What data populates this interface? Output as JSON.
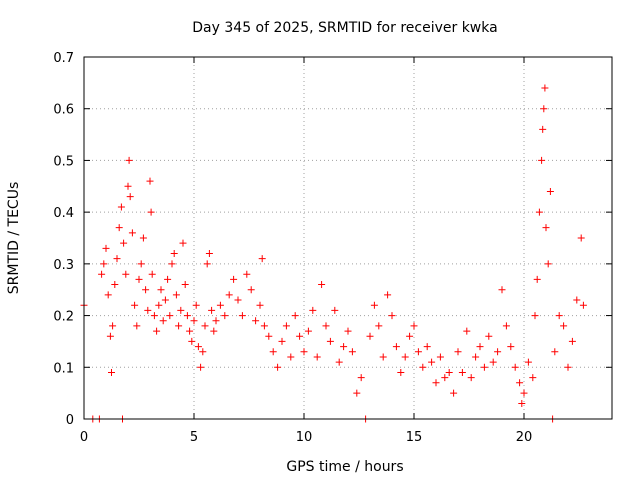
{
  "chart_data": {
    "type": "scatter",
    "title": "Day 345 of 2025, SRMTID for receiver kwka",
    "xlabel": "GPS time / hours",
    "ylabel": "SRMTID / TECUs",
    "xlim": [
      0,
      24
    ],
    "ylim": [
      0,
      0.7
    ],
    "xticks": [
      0,
      5,
      10,
      15,
      20
    ],
    "xtick_labels": [
      "0",
      "5",
      "10",
      "15",
      "20"
    ],
    "yticks": [
      0,
      0.1,
      0.2,
      0.3,
      0.4,
      0.5,
      0.6,
      0.7
    ],
    "ytick_labels": [
      "0",
      "0.1",
      "0.2",
      "0.3",
      "0.4",
      "0.5",
      "0.6",
      "0.7"
    ],
    "grid": true,
    "marker": "+",
    "color": "#ff0000",
    "series": [
      {
        "name": "SRMTID",
        "points": [
          [
            0.0,
            0.22
          ],
          [
            0.4,
            0.0
          ],
          [
            0.7,
            0.0
          ],
          [
            0.8,
            0.28
          ],
          [
            0.9,
            0.3
          ],
          [
            1.0,
            0.33
          ],
          [
            1.1,
            0.24
          ],
          [
            1.2,
            0.16
          ],
          [
            1.25,
            0.09
          ],
          [
            1.3,
            0.18
          ],
          [
            1.4,
            0.26
          ],
          [
            1.5,
            0.31
          ],
          [
            1.6,
            0.37
          ],
          [
            1.7,
            0.41
          ],
          [
            1.75,
            0.0
          ],
          [
            1.8,
            0.34
          ],
          [
            1.9,
            0.28
          ],
          [
            2.0,
            0.45
          ],
          [
            2.05,
            0.5
          ],
          [
            2.1,
            0.43
          ],
          [
            2.2,
            0.36
          ],
          [
            2.3,
            0.22
          ],
          [
            2.4,
            0.18
          ],
          [
            2.5,
            0.27
          ],
          [
            2.6,
            0.3
          ],
          [
            2.7,
            0.35
          ],
          [
            2.8,
            0.25
          ],
          [
            2.9,
            0.21
          ],
          [
            3.0,
            0.46
          ],
          [
            3.05,
            0.4
          ],
          [
            3.1,
            0.28
          ],
          [
            3.2,
            0.2
          ],
          [
            3.3,
            0.17
          ],
          [
            3.4,
            0.22
          ],
          [
            3.5,
            0.25
          ],
          [
            3.6,
            0.19
          ],
          [
            3.7,
            0.23
          ],
          [
            3.8,
            0.27
          ],
          [
            3.9,
            0.2
          ],
          [
            4.0,
            0.3
          ],
          [
            4.1,
            0.32
          ],
          [
            4.2,
            0.24
          ],
          [
            4.3,
            0.18
          ],
          [
            4.4,
            0.21
          ],
          [
            4.5,
            0.34
          ],
          [
            4.6,
            0.26
          ],
          [
            4.7,
            0.2
          ],
          [
            4.8,
            0.17
          ],
          [
            4.9,
            0.15
          ],
          [
            5.0,
            0.19
          ],
          [
            5.1,
            0.22
          ],
          [
            5.2,
            0.14
          ],
          [
            5.3,
            0.1
          ],
          [
            5.4,
            0.13
          ],
          [
            5.5,
            0.18
          ],
          [
            5.6,
            0.3
          ],
          [
            5.7,
            0.32
          ],
          [
            5.8,
            0.21
          ],
          [
            5.9,
            0.17
          ],
          [
            6.0,
            0.19
          ],
          [
            6.2,
            0.22
          ],
          [
            6.4,
            0.2
          ],
          [
            6.6,
            0.24
          ],
          [
            6.8,
            0.27
          ],
          [
            7.0,
            0.23
          ],
          [
            7.2,
            0.2
          ],
          [
            7.4,
            0.28
          ],
          [
            7.6,
            0.25
          ],
          [
            7.8,
            0.19
          ],
          [
            8.0,
            0.22
          ],
          [
            8.1,
            0.31
          ],
          [
            8.2,
            0.18
          ],
          [
            8.4,
            0.16
          ],
          [
            8.6,
            0.13
          ],
          [
            8.8,
            0.1
          ],
          [
            9.0,
            0.15
          ],
          [
            9.2,
            0.18
          ],
          [
            9.4,
            0.12
          ],
          [
            9.6,
            0.2
          ],
          [
            9.8,
            0.16
          ],
          [
            10.0,
            0.13
          ],
          [
            10.2,
            0.17
          ],
          [
            10.4,
            0.21
          ],
          [
            10.6,
            0.12
          ],
          [
            10.8,
            0.26
          ],
          [
            11.0,
            0.18
          ],
          [
            11.2,
            0.15
          ],
          [
            11.4,
            0.21
          ],
          [
            11.6,
            0.11
          ],
          [
            11.8,
            0.14
          ],
          [
            12.0,
            0.17
          ],
          [
            12.2,
            0.13
          ],
          [
            12.4,
            0.05
          ],
          [
            12.6,
            0.08
          ],
          [
            12.8,
            0.0
          ],
          [
            13.0,
            0.16
          ],
          [
            13.2,
            0.22
          ],
          [
            13.4,
            0.18
          ],
          [
            13.6,
            0.12
          ],
          [
            13.8,
            0.24
          ],
          [
            14.0,
            0.2
          ],
          [
            14.2,
            0.14
          ],
          [
            14.4,
            0.09
          ],
          [
            14.6,
            0.12
          ],
          [
            14.8,
            0.16
          ],
          [
            15.0,
            0.18
          ],
          [
            15.2,
            0.13
          ],
          [
            15.4,
            0.1
          ],
          [
            15.6,
            0.14
          ],
          [
            15.8,
            0.11
          ],
          [
            16.0,
            0.07
          ],
          [
            16.2,
            0.12
          ],
          [
            16.4,
            0.08
          ],
          [
            16.6,
            0.09
          ],
          [
            16.8,
            0.05
          ],
          [
            17.0,
            0.13
          ],
          [
            17.2,
            0.09
          ],
          [
            17.4,
            0.17
          ],
          [
            17.6,
            0.08
          ],
          [
            17.8,
            0.12
          ],
          [
            18.0,
            0.14
          ],
          [
            18.2,
            0.1
          ],
          [
            18.4,
            0.16
          ],
          [
            18.6,
            0.11
          ],
          [
            18.8,
            0.13
          ],
          [
            19.0,
            0.25
          ],
          [
            19.2,
            0.18
          ],
          [
            19.4,
            0.14
          ],
          [
            19.6,
            0.1
          ],
          [
            19.8,
            0.07
          ],
          [
            19.9,
            0.03
          ],
          [
            20.0,
            0.05
          ],
          [
            20.2,
            0.11
          ],
          [
            20.4,
            0.08
          ],
          [
            20.5,
            0.2
          ],
          [
            20.6,
            0.27
          ],
          [
            20.7,
            0.4
          ],
          [
            20.8,
            0.5
          ],
          [
            20.85,
            0.56
          ],
          [
            20.9,
            0.6
          ],
          [
            20.95,
            0.64
          ],
          [
            21.0,
            0.37
          ],
          [
            21.1,
            0.3
          ],
          [
            21.2,
            0.44
          ],
          [
            21.3,
            0.0
          ],
          [
            21.4,
            0.13
          ],
          [
            21.6,
            0.2
          ],
          [
            21.8,
            0.18
          ],
          [
            22.0,
            0.1
          ],
          [
            22.2,
            0.15
          ],
          [
            22.4,
            0.23
          ],
          [
            22.6,
            0.35
          ],
          [
            22.7,
            0.22
          ]
        ]
      }
    ]
  },
  "colors": {
    "marker": "#ff0000",
    "grid": "#a0a0a0",
    "axes": "#000000",
    "background": "#ffffff"
  }
}
